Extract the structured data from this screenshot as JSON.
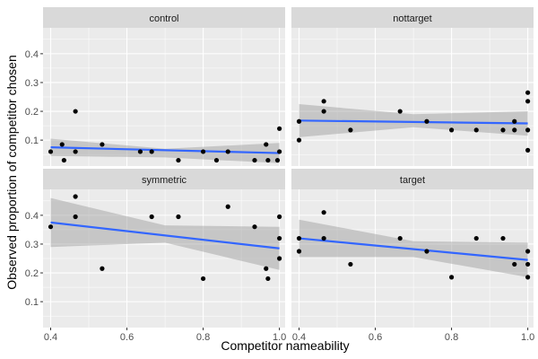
{
  "chart_data": {
    "type": "scatter",
    "xlabel": "Competitor nameability",
    "ylabel": "Observed proportion of competitor chosen",
    "xlim": [
      0.38,
      1.015
    ],
    "ylim": [
      0.01,
      0.49
    ],
    "x_ticks": [
      0.4,
      0.6,
      0.8,
      1.0
    ],
    "x_tick_labels": [
      "0.4",
      "0.6",
      "0.8",
      "1.0"
    ],
    "y_ticks": [
      0.1,
      0.2,
      0.3,
      0.4
    ],
    "y_tick_labels": [
      "0.1",
      "0.2",
      "0.3",
      "0.4"
    ],
    "grid": true,
    "colors": {
      "panel_bg": "#ebebeb",
      "strip_bg": "#d9d9d9",
      "grid": "#ffffff",
      "point": "#000000",
      "fit_line": "#3366ff",
      "ribbon": "#999999"
    },
    "panels": [
      {
        "label": "control",
        "points": [
          [
            0.4,
            0.06
          ],
          [
            0.43,
            0.085
          ],
          [
            0.435,
            0.03
          ],
          [
            0.465,
            0.2
          ],
          [
            0.465,
            0.06
          ],
          [
            0.535,
            0.085
          ],
          [
            0.635,
            0.06
          ],
          [
            0.665,
            0.06
          ],
          [
            0.735,
            0.03
          ],
          [
            0.8,
            0.06
          ],
          [
            0.835,
            0.03
          ],
          [
            0.865,
            0.06
          ],
          [
            0.935,
            0.03
          ],
          [
            0.965,
            0.085
          ],
          [
            0.97,
            0.03
          ],
          [
            0.995,
            0.03
          ],
          [
            1.0,
            0.14
          ],
          [
            1.0,
            0.06
          ]
        ],
        "fit": {
          "x": [
            0.4,
            1.0
          ],
          "y": [
            0.075,
            0.055
          ]
        },
        "ribbon": {
          "x": [
            0.4,
            0.7,
            1.0
          ],
          "lower": [
            0.045,
            0.04,
            0.02
          ],
          "upper": [
            0.105,
            0.07,
            0.09
          ]
        }
      },
      {
        "label": "nottarget",
        "points": [
          [
            0.4,
            0.165
          ],
          [
            0.4,
            0.1
          ],
          [
            0.465,
            0.235
          ],
          [
            0.465,
            0.2
          ],
          [
            0.535,
            0.135
          ],
          [
            0.665,
            0.2
          ],
          [
            0.735,
            0.165
          ],
          [
            0.8,
            0.135
          ],
          [
            0.865,
            0.135
          ],
          [
            0.935,
            0.135
          ],
          [
            0.965,
            0.165
          ],
          [
            0.965,
            0.135
          ],
          [
            1.0,
            0.265
          ],
          [
            1.0,
            0.235
          ],
          [
            1.0,
            0.135
          ],
          [
            1.0,
            0.065
          ]
        ],
        "fit": {
          "x": [
            0.4,
            1.0
          ],
          "y": [
            0.168,
            0.158
          ]
        },
        "ribbon": {
          "x": [
            0.4,
            0.7,
            1.0
          ],
          "lower": [
            0.11,
            0.145,
            0.115
          ],
          "upper": [
            0.225,
            0.19,
            0.2
          ]
        }
      },
      {
        "label": "symmetric",
        "points": [
          [
            0.4,
            0.36
          ],
          [
            0.465,
            0.465
          ],
          [
            0.465,
            0.395
          ],
          [
            0.535,
            0.215
          ],
          [
            0.665,
            0.395
          ],
          [
            0.735,
            0.395
          ],
          [
            0.8,
            0.18
          ],
          [
            0.865,
            0.43
          ],
          [
            0.935,
            0.36
          ],
          [
            0.965,
            0.215
          ],
          [
            0.97,
            0.18
          ],
          [
            1.0,
            0.395
          ],
          [
            1.0,
            0.32
          ],
          [
            1.0,
            0.25
          ]
        ],
        "fit": {
          "x": [
            0.4,
            1.0
          ],
          "y": [
            0.375,
            0.285
          ]
        },
        "ribbon": {
          "x": [
            0.4,
            0.7,
            1.0
          ],
          "lower": [
            0.29,
            0.305,
            0.21
          ],
          "upper": [
            0.46,
            0.365,
            0.36
          ]
        }
      },
      {
        "label": "target",
        "points": [
          [
            0.4,
            0.32
          ],
          [
            0.4,
            0.275
          ],
          [
            0.465,
            0.41
          ],
          [
            0.465,
            0.32
          ],
          [
            0.535,
            0.23
          ],
          [
            0.665,
            0.32
          ],
          [
            0.735,
            0.275
          ],
          [
            0.8,
            0.185
          ],
          [
            0.865,
            0.32
          ],
          [
            0.935,
            0.32
          ],
          [
            0.965,
            0.23
          ],
          [
            1.0,
            0.275
          ],
          [
            1.0,
            0.23
          ],
          [
            1.0,
            0.185
          ]
        ],
        "fit": {
          "x": [
            0.4,
            1.0
          ],
          "y": [
            0.32,
            0.245
          ]
        },
        "ribbon": {
          "x": [
            0.4,
            0.7,
            1.0
          ],
          "lower": [
            0.255,
            0.255,
            0.185
          ],
          "upper": [
            0.385,
            0.31,
            0.305
          ]
        }
      }
    ]
  }
}
